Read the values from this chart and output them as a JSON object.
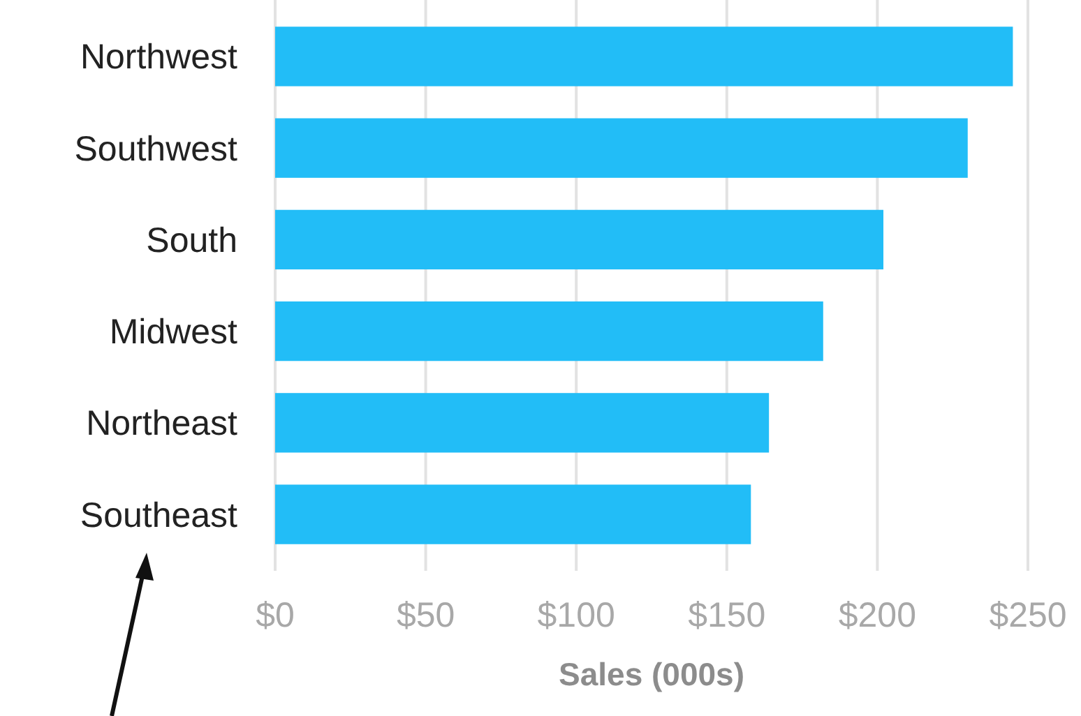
{
  "chart_data": {
    "type": "bar",
    "orientation": "horizontal",
    "xlabel": "Sales (000s)",
    "categories": [
      "Northwest",
      "Southwest",
      "South",
      "Midwest",
      "Northeast",
      "Southeast"
    ],
    "values": [
      245,
      230,
      202,
      182,
      164,
      158
    ],
    "color": "#22bdf7",
    "xlim": [
      0,
      250
    ],
    "xticks": [
      {
        "value": 0,
        "label": "$0"
      },
      {
        "value": 50,
        "label": "$50"
      },
      {
        "value": 100,
        "label": "$100"
      },
      {
        "value": 150,
        "label": "$150"
      },
      {
        "value": 200,
        "label": "$200"
      },
      {
        "value": 250,
        "label": "$250"
      }
    ],
    "grid": "x"
  }
}
